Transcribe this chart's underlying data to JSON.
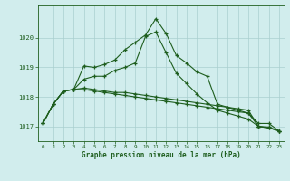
{
  "hours": [
    0,
    1,
    2,
    3,
    4,
    5,
    6,
    7,
    8,
    9,
    10,
    11,
    12,
    13,
    14,
    15,
    16,
    17,
    18,
    19,
    20,
    21,
    22,
    23
  ],
  "line1": [
    1017.1,
    1017.75,
    1018.2,
    1018.25,
    1019.05,
    1019.0,
    1019.1,
    1019.25,
    1019.6,
    1019.85,
    1020.1,
    1020.65,
    1020.15,
    1019.4,
    1019.15,
    1018.85,
    1018.7,
    1017.75,
    1017.65,
    1017.55,
    1017.45,
    1017.1,
    1017.1,
    1016.85
  ],
  "line2": [
    1017.1,
    1017.75,
    1018.2,
    1018.25,
    1018.6,
    1018.7,
    1018.7,
    1018.9,
    1019.0,
    1019.15,
    1020.05,
    1020.2,
    1019.5,
    1018.8,
    1018.45,
    1018.1,
    1017.8,
    1017.55,
    1017.45,
    1017.35,
    1017.25,
    1017.0,
    1016.95,
    1016.85
  ],
  "line3": [
    1017.1,
    1017.75,
    1018.2,
    1018.25,
    1018.25,
    1018.2,
    1018.15,
    1018.1,
    1018.05,
    1018.0,
    1017.95,
    1017.9,
    1017.85,
    1017.8,
    1017.75,
    1017.7,
    1017.65,
    1017.6,
    1017.55,
    1017.5,
    1017.45,
    1017.0,
    1016.95,
    1016.85
  ],
  "line4": [
    1017.1,
    1017.75,
    1018.2,
    1018.25,
    1018.3,
    1018.25,
    1018.2,
    1018.15,
    1018.15,
    1018.1,
    1018.05,
    1018.0,
    1017.95,
    1017.9,
    1017.85,
    1017.8,
    1017.75,
    1017.7,
    1017.65,
    1017.6,
    1017.55,
    1017.0,
    1016.98,
    1016.85
  ],
  "bg_color": "#d1eded",
  "line_color": "#1e5e1e",
  "grid_color": "#aacfcf",
  "xlabel": "Graphe pression niveau de la mer (hPa)",
  "ylim": [
    1016.5,
    1021.1
  ],
  "yticks": [
    1017,
    1018,
    1019,
    1020
  ],
  "marker": "+"
}
